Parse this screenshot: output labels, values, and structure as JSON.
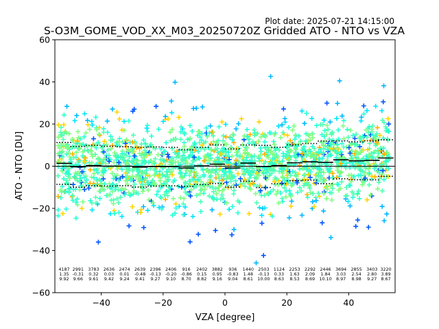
{
  "header": {
    "plot_date": "Plot date: 2025-07-21 14:15:00",
    "title": "S-O3M_GOME_VOD_XX_M03_20250720Z Gridded ATO - NTO vs VZA"
  },
  "chart_data": {
    "type": "scatter",
    "title": "S-O3M_GOME_VOD_XX_M03_20250720Z Gridded ATO - NTO vs VZA",
    "xlabel": "VZA [degree]",
    "ylabel": "ATO - NTO [DU]",
    "xlim": [
      -55,
      55
    ],
    "ylim": [
      -60,
      60
    ],
    "xticks": [
      -40,
      -20,
      0,
      20,
      40
    ],
    "yticks": [
      -60,
      -40,
      -20,
      0,
      20,
      40,
      60
    ],
    "xtick_labels": [
      "−40",
      "−20",
      "0",
      "20",
      "40"
    ],
    "ytick_labels": [
      "−60",
      "−40",
      "−20",
      "0",
      "20",
      "40",
      "60"
    ],
    "grid": false,
    "legend": "none",
    "marker": "plus",
    "point_colors": [
      "#7fff7f",
      "#4dffb3",
      "#29ffd4",
      "#00e5ff",
      "#00b8ff",
      "#ffd400",
      "#ffb000",
      "#0055ff",
      "#0022dd"
    ],
    "zero_line_color": "#000000",
    "bins": {
      "centers": [
        -52,
        -47.5,
        -42.5,
        -37.5,
        -32.5,
        -27.5,
        -22.5,
        -17.5,
        -12.5,
        -7.5,
        -2.5,
        2.5,
        7.5,
        12.5,
        17.5,
        22.5,
        27.5,
        32.5,
        37.5,
        42.5,
        47.5,
        52
      ],
      "count_labels": [
        "4187",
        "2991",
        "3783",
        "2636",
        "2474",
        "2639",
        "2396",
        "2406",
        "916",
        "2402",
        "3882",
        "936",
        "1440",
        "2503",
        "1124",
        "2253",
        "2292",
        "2446",
        "3694",
        "2855",
        "3403",
        "3220"
      ],
      "mean_labels": [
        "1.35",
        "-0.31",
        "0.32",
        "0.03",
        "0.01",
        "-0.48",
        "-0.13",
        "-0.20",
        "-0.86",
        "0.15",
        "0.95",
        "-0.83",
        "1.48",
        "-0.13",
        "0.33",
        "1.63",
        "2.09",
        "1.84",
        "3.03",
        "2.54",
        "2.80",
        "3.89"
      ],
      "std_labels": [
        "9.92",
        "9.66",
        "9.61",
        "9.42",
        "9.24",
        "9.41",
        "9.27",
        "9.10",
        "8.70",
        "8.82",
        "9.16",
        "9.04",
        "8.61",
        "10.00",
        "8.63",
        "8.53",
        "8.69",
        "10.10",
        "8.97",
        "8.98",
        "9.27",
        "8.67"
      ],
      "mean": [
        1.35,
        -0.31,
        0.32,
        0.03,
        0.01,
        -0.48,
        -0.13,
        -0.2,
        -0.86,
        0.15,
        0.95,
        -0.83,
        1.48,
        -0.13,
        0.33,
        1.63,
        2.09,
        1.84,
        3.03,
        2.54,
        2.8,
        3.89
      ],
      "std": [
        9.92,
        9.66,
        9.61,
        9.42,
        9.24,
        9.41,
        9.27,
        9.1,
        8.7,
        8.82,
        9.16,
        9.04,
        8.61,
        10.0,
        8.63,
        8.53,
        8.69,
        10.1,
        8.97,
        8.98,
        9.27,
        8.67
      ]
    }
  }
}
